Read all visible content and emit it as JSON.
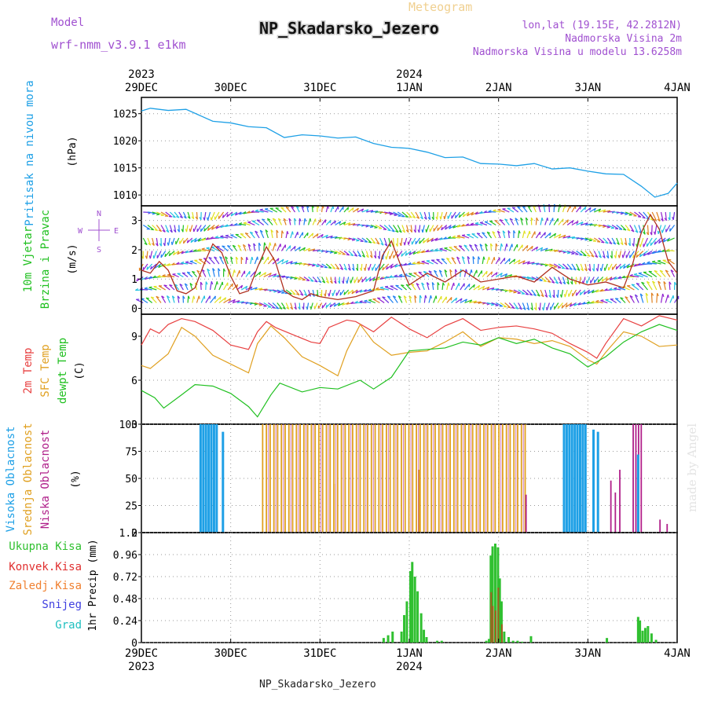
{
  "header": {
    "model_label": "Model",
    "model_name": "wrf-nmm_v3.9.1 e1km",
    "meteogram_label": "Meteogram",
    "station": "NP_Skadarsko_Jezero",
    "lonlat": "lon,lat (19.15E, 42.2812N)",
    "elevation": "Nadmorska Visina 2m",
    "model_elevation": "Nadmorska Visina u modelu 13.6258m",
    "footer_station": "NP_Skadarsko_Jezero",
    "watermark": "made by Angel"
  },
  "colors": {
    "pressure": "#1ea0e6",
    "wind_speed": "#e02020",
    "temp2m": "#e84040",
    "sfc_temp": "#e0a020",
    "dewpt": "#20c020",
    "high_cloud": "#1ea0e6",
    "mid_cloud": "#e0a020",
    "low_cloud": "#b0208a",
    "precip_total": "#30c030",
    "precip_conv": "#e03030",
    "precip_frz": "#f08030",
    "snow": "#4040e0",
    "graupel": "#20c0c0",
    "label_purple": "#a050d0"
  },
  "time_axis": {
    "top_years": [
      {
        "text": "2023",
        "day": 0
      },
      {
        "text": "2024",
        "day": 3
      }
    ],
    "bottom_years": [
      {
        "text": "2023",
        "day": 0
      },
      {
        "text": "2024",
        "day": 3
      }
    ],
    "days": [
      "29DEC",
      "30DEC",
      "31DEC",
      "1JAN",
      "2JAN",
      "3JAN",
      "4JAN"
    ]
  },
  "chart_data": [
    {
      "type": "line",
      "panel": "pressure",
      "ylabel_lines": [
        "Pritisak na nivou mora"
      ],
      "unit": "(hPa)",
      "ylim": [
        1008,
        1028
      ],
      "yticks": [
        1010,
        1015,
        1020,
        1025
      ],
      "x_unit": "days since 29DEC 00UTC",
      "series": [
        {
          "name": "Pritisak na nivou mora",
          "x": [
            0,
            0.1,
            0.3,
            0.5,
            0.8,
            1.0,
            1.2,
            1.4,
            1.6,
            1.8,
            2.0,
            2.2,
            2.4,
            2.6,
            2.8,
            3.0,
            3.2,
            3.4,
            3.6,
            3.8,
            4.0,
            4.2,
            4.4,
            4.6,
            4.8,
            5.0,
            5.2,
            5.4,
            5.6,
            5.75,
            5.9,
            6.0
          ],
          "values": [
            1025.5,
            1026.0,
            1025.6,
            1025.8,
            1023.6,
            1023.3,
            1022.6,
            1022.4,
            1020.6,
            1021.1,
            1020.9,
            1020.5,
            1020.7,
            1019.5,
            1018.8,
            1018.6,
            1017.9,
            1016.9,
            1017.0,
            1015.8,
            1015.7,
            1015.4,
            1015.8,
            1014.8,
            1015.0,
            1014.4,
            1013.9,
            1013.8,
            1011.6,
            1009.6,
            1010.3,
            1012.2
          ]
        }
      ]
    },
    {
      "type": "line",
      "panel": "wind",
      "ylabel_lines": [
        "10m Vjetar",
        "Brzina i Pravac"
      ],
      "unit": "(m/s)",
      "compass": [
        "N",
        "E",
        "S",
        "W"
      ],
      "ylim": [
        -0.2,
        3.5
      ],
      "yticks": [
        0,
        1,
        2,
        3
      ],
      "series": [
        {
          "name": "Brzina",
          "x": [
            0,
            0.1,
            0.2,
            0.3,
            0.4,
            0.5,
            0.6,
            0.7,
            0.8,
            0.9,
            1.0,
            1.1,
            1.2,
            1.3,
            1.4,
            1.5,
            1.6,
            1.7,
            1.8,
            1.9,
            2.0,
            2.2,
            2.4,
            2.6,
            2.7,
            2.8,
            2.9,
            3.0,
            3.2,
            3.4,
            3.6,
            3.8,
            4.0,
            4.2,
            4.4,
            4.6,
            4.8,
            5.0,
            5.2,
            5.4,
            5.5,
            5.6,
            5.7,
            5.8,
            5.9,
            6.0
          ],
          "values": [
            1.3,
            1.2,
            1.6,
            1.3,
            0.6,
            0.5,
            0.7,
            1.5,
            2.2,
            1.9,
            1.1,
            0.5,
            0.6,
            1.4,
            2.1,
            1.6,
            0.6,
            0.4,
            0.3,
            0.5,
            0.4,
            0.3,
            0.4,
            0.6,
            1.8,
            2.3,
            1.5,
            0.8,
            1.2,
            0.9,
            1.3,
            0.9,
            1.0,
            1.1,
            0.9,
            1.4,
            1.0,
            0.8,
            0.9,
            0.7,
            1.5,
            2.6,
            3.2,
            2.7,
            1.6,
            1.2
          ]
        }
      ],
      "arrow_step_days": 0.05
    },
    {
      "type": "line",
      "panel": "temperature",
      "ylabel_lines": [
        "2m Temp",
        "SFC Temp",
        "dewpt Temp"
      ],
      "unit": "(C)",
      "ylim": [
        3,
        10.5
      ],
      "yticks": [
        3,
        6,
        9
      ],
      "series": [
        {
          "name": "2m Temp",
          "x": [
            0,
            0.1,
            0.2,
            0.3,
            0.45,
            0.6,
            0.8,
            1.0,
            1.2,
            1.3,
            1.4,
            1.5,
            1.7,
            1.9,
            2.0,
            2.1,
            2.3,
            2.4,
            2.6,
            2.8,
            3.0,
            3.2,
            3.4,
            3.6,
            3.8,
            4.0,
            4.2,
            4.4,
            4.6,
            4.8,
            5.0,
            5.1,
            5.2,
            5.4,
            5.6,
            5.8,
            6.0
          ],
          "values": [
            8.4,
            9.5,
            9.2,
            9.8,
            10.2,
            10.0,
            9.4,
            8.4,
            8.1,
            9.3,
            10.0,
            9.6,
            9.1,
            8.6,
            8.5,
            9.6,
            10.1,
            10.0,
            9.3,
            10.3,
            9.5,
            8.9,
            9.7,
            10.2,
            9.4,
            9.6,
            9.7,
            9.5,
            9.2,
            8.5,
            7.9,
            7.5,
            8.5,
            10.2,
            9.7,
            10.4,
            10.1
          ]
        },
        {
          "name": "SFC Temp",
          "x": [
            0,
            0.1,
            0.3,
            0.45,
            0.6,
            0.8,
            1.0,
            1.2,
            1.3,
            1.45,
            1.6,
            1.8,
            2.0,
            2.2,
            2.3,
            2.45,
            2.6,
            2.8,
            3.0,
            3.2,
            3.4,
            3.6,
            3.8,
            4.0,
            4.2,
            4.4,
            4.6,
            4.8,
            5.0,
            5.1,
            5.2,
            5.4,
            5.6,
            5.8,
            6.0
          ],
          "values": [
            7.0,
            6.8,
            7.8,
            9.6,
            9.0,
            7.7,
            7.1,
            6.5,
            8.5,
            9.7,
            8.9,
            7.6,
            7.0,
            6.3,
            8.0,
            9.8,
            8.6,
            7.7,
            7.9,
            8.0,
            8.6,
            9.3,
            8.3,
            8.9,
            8.8,
            8.5,
            8.7,
            8.3,
            7.4,
            7.1,
            7.9,
            9.3,
            9.0,
            8.3,
            8.4
          ]
        },
        {
          "name": "dewpt Temp",
          "x": [
            0,
            0.15,
            0.25,
            0.45,
            0.6,
            0.8,
            1.0,
            1.2,
            1.3,
            1.45,
            1.55,
            1.8,
            2.0,
            2.2,
            2.45,
            2.6,
            2.8,
            3.0,
            3.2,
            3.4,
            3.6,
            3.8,
            4.0,
            4.2,
            4.4,
            4.6,
            4.8,
            5.0,
            5.2,
            5.4,
            5.6,
            5.8,
            6.0
          ],
          "values": [
            5.3,
            4.8,
            4.1,
            5.0,
            5.7,
            5.6,
            5.1,
            4.2,
            3.5,
            5.0,
            5.8,
            5.2,
            5.5,
            5.4,
            6.0,
            5.4,
            6.2,
            8.0,
            8.1,
            8.2,
            8.6,
            8.4,
            8.9,
            8.5,
            8.8,
            8.2,
            7.8,
            6.9,
            7.6,
            8.6,
            9.3,
            9.8,
            9.4
          ]
        }
      ]
    },
    {
      "type": "bar",
      "panel": "clouds",
      "ylabel_lines": [
        "Visoka Oblacnost",
        "Srednja Oblacnost",
        "Niska Oblacnost"
      ],
      "unit": "(%)",
      "ylim": [
        0,
        100
      ],
      "yticks": [
        0,
        25,
        50,
        75,
        100
      ],
      "series": [
        {
          "name": "Visoka Oblacnost",
          "ranges": [
            [
              0.65,
              0.72
            ],
            [
              0.74,
              0.78
            ],
            [
              0.8,
              0.86
            ]
          ],
          "partials": [
            {
              "x": 0.9,
              "v": 93
            },
            {
              "x": 5.05,
              "v": 95
            },
            {
              "x": 5.1,
              "v": 93
            }
          ]
        },
        {
          "name": "Srednja Oblacnost",
          "ranges": [
            [
              1.35,
              4.3
            ]
          ],
          "partials": [
            {
              "x": 2.15,
              "v": 45
            },
            {
              "x": 3.1,
              "v": 58
            },
            {
              "x": 3.45,
              "v": 20
            }
          ]
        },
        {
          "name": "Niska Oblacnost",
          "ranges": [
            [
              5.5,
              5.62
            ]
          ],
          "partials": [
            {
              "x": 4.3,
              "v": 35
            },
            {
              "x": 5.25,
              "v": 48
            },
            {
              "x": 5.3,
              "v": 37
            },
            {
              "x": 5.35,
              "v": 58
            },
            {
              "x": 5.8,
              "v": 12
            },
            {
              "x": 5.88,
              "v": 8
            }
          ]
        },
        {
          "name": "Visoka Oblacnost",
          "ranges": [
            [
              4.72,
              4.98
            ]
          ],
          "partials": [
            {
              "x": 5.55,
              "v": 72
            }
          ]
        }
      ]
    },
    {
      "type": "bar",
      "panel": "precip",
      "legend": [
        "Ukupna Kisa",
        "Konvek.Kisa",
        "Zaledj.Kisa",
        "Snijeg",
        "Grad"
      ],
      "unit": "1hr Precip (mm)",
      "ylim": [
        0,
        1.2
      ],
      "yticks": [
        0,
        0.24,
        0.48,
        0.72,
        0.96,
        1.2
      ],
      "series": [
        {
          "name": "Ukupna Kisa",
          "x": [
            2.7,
            2.75,
            2.8,
            2.9,
            2.93,
            2.96,
            3.0,
            3.02,
            3.05,
            3.08,
            3.12,
            3.15,
            3.18,
            3.3,
            3.35,
            3.85,
            3.88,
            3.9,
            3.92,
            3.95,
            3.98,
            4.0,
            4.02,
            4.05,
            4.1,
            4.15,
            4.2,
            4.25,
            4.35,
            5.2,
            5.55,
            5.57,
            5.6,
            5.63,
            5.66,
            5.7,
            5.75
          ],
          "values": [
            0.05,
            0.08,
            0.12,
            0.12,
            0.3,
            0.45,
            0.78,
            0.88,
            0.72,
            0.56,
            0.32,
            0.14,
            0.06,
            0.02,
            0.02,
            0.02,
            0.04,
            0.95,
            1.05,
            1.08,
            1.04,
            0.7,
            0.45,
            0.12,
            0.06,
            0.02,
            0.02,
            0.01,
            0.07,
            0.05,
            0.28,
            0.24,
            0.13,
            0.16,
            0.18,
            0.1,
            0.03
          ]
        },
        {
          "name": "Konvek.Kisa",
          "x": [
            3.9,
            3.92,
            3.95,
            3.98,
            4.02
          ],
          "values": [
            0.55,
            0.4,
            0.35,
            0.6,
            0.2
          ]
        }
      ]
    }
  ]
}
